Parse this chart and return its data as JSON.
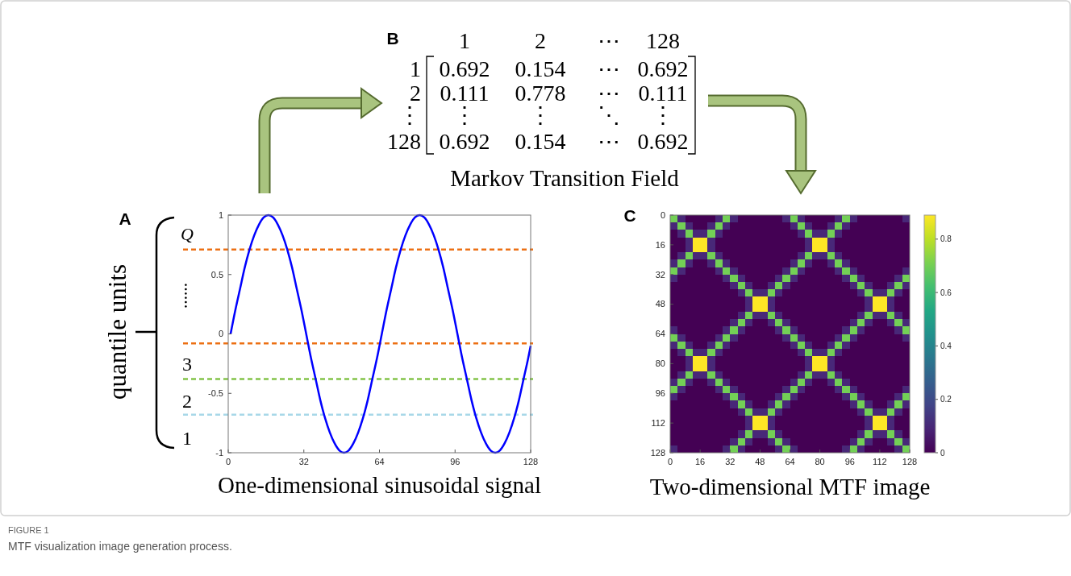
{
  "chart_data": [
    {
      "type": "line",
      "xlabel": "One-dimensional sinusoidal signal",
      "xlim": [
        0,
        128
      ],
      "ylim": [
        -1,
        1
      ],
      "xticks": [
        0,
        32,
        64,
        96,
        128
      ],
      "yticks": [
        -1,
        -0.5,
        0,
        0.5,
        1
      ],
      "x": [
        1,
        3,
        5,
        7,
        9,
        11,
        13,
        15,
        17,
        19,
        21,
        23,
        25,
        27,
        29,
        31,
        33,
        35,
        37,
        39,
        41,
        43,
        45,
        47,
        49,
        51,
        53,
        55,
        57,
        59,
        61,
        63,
        65,
        67,
        69,
        71,
        73,
        75,
        77,
        79,
        81,
        83,
        85,
        87,
        89,
        91,
        93,
        95,
        97,
        99,
        101,
        103,
        105,
        107,
        109,
        111,
        113,
        115,
        117,
        119,
        121,
        123,
        125,
        127,
        128
      ],
      "series": [
        {
          "color": "#0000ff",
          "values": [
            0,
            0.2,
            0.38,
            0.56,
            0.71,
            0.83,
            0.92,
            0.98,
            1,
            0.98,
            0.92,
            0.83,
            0.71,
            0.56,
            0.38,
            0.2,
            0,
            -0.2,
            -0.38,
            -0.56,
            -0.71,
            -0.83,
            -0.92,
            -0.98,
            -1,
            -0.98,
            -0.92,
            -0.83,
            -0.71,
            -0.56,
            -0.38,
            -0.2,
            0,
            0.2,
            0.38,
            0.56,
            0.71,
            0.83,
            0.92,
            0.98,
            1,
            0.98,
            0.92,
            0.83,
            0.71,
            0.56,
            0.38,
            0.2,
            0,
            -0.2,
            -0.38,
            -0.56,
            -0.71,
            -0.83,
            -0.92,
            -0.98,
            -1,
            -0.98,
            -0.92,
            -0.83,
            -0.71,
            -0.56,
            -0.38,
            -0.2,
            -0.1
          ]
        }
      ],
      "ref_lines": [
        {
          "axis": "y",
          "value": 0.71,
          "color": "#ec7014",
          "line_style": "dashed"
        },
        {
          "axis": "y",
          "value": -0.08,
          "color": "#ec7014",
          "line_style": "dashed"
        },
        {
          "axis": "y",
          "value": -0.38,
          "color": "#84c44a",
          "line_style": "dashed"
        },
        {
          "axis": "y",
          "value": -0.68,
          "color": "#a8d8e8",
          "line_style": "dashed"
        }
      ],
      "annotations": [
        "A",
        "quantile units",
        "Q",
        "……",
        "3",
        "2",
        "1"
      ]
    },
    {
      "type": "other",
      "title": "Markov Transition Field",
      "categories": [
        "1",
        "2",
        "⋯",
        "128"
      ],
      "y_categories": [
        "1",
        "2",
        "⋮",
        "128"
      ],
      "cell_labels": [
        [
          "0.692",
          "0.154",
          "⋯",
          "0.692"
        ],
        [
          "0.111",
          "0.778",
          "⋯",
          "0.111"
        ],
        [
          "⋮",
          "⋮",
          "⋱",
          "⋮"
        ],
        [
          "0.692",
          "0.154",
          "⋯",
          "0.692"
        ]
      ],
      "annotations": [
        "B",
        "FIGURE 1",
        "MTF visualization image generation process."
      ]
    },
    {
      "type": "heatmap",
      "xlabel": "Two-dimensional MTF image",
      "xlim": [
        0,
        128
      ],
      "ylim": [
        128,
        0
      ],
      "xticks": [
        0,
        16,
        32,
        48,
        64,
        80,
        96,
        112,
        128
      ],
      "yticks": [
        0,
        16,
        32,
        48,
        64,
        80,
        96,
        112,
        128
      ],
      "clim": [
        0,
        0.89
      ],
      "cticks": [
        0,
        0.2,
        0.4,
        0.6,
        0.8
      ],
      "cells": [
        [
          0.7,
          0.1,
          0,
          0,
          0,
          0,
          0.1,
          0.7,
          0.1,
          0,
          0,
          0,
          0,
          0,
          0,
          0.1,
          0.7,
          0.1,
          0,
          0,
          0,
          0,
          0.1,
          0.7,
          0.1,
          0,
          0,
          0,
          0,
          0,
          0,
          0.1
        ],
        [
          0.1,
          0.7,
          0.1,
          0,
          0,
          0.1,
          0.7,
          0.1,
          0,
          0,
          0,
          0,
          0,
          0,
          0,
          0,
          0.1,
          0.7,
          0.1,
          0,
          0,
          0.1,
          0.7,
          0.1,
          0,
          0,
          0,
          0,
          0,
          0,
          0,
          0
        ],
        [
          0,
          0.1,
          0.7,
          0.1,
          0.1,
          0.7,
          0.1,
          0,
          0,
          0,
          0,
          0,
          0,
          0,
          0,
          0,
          0,
          0.1,
          0.7,
          0.1,
          0.1,
          0.7,
          0.1,
          0,
          0,
          0,
          0,
          0,
          0,
          0,
          0,
          0
        ],
        [
          0,
          0,
          0.1,
          0.89,
          0.89,
          0.1,
          0,
          0,
          0,
          0,
          0,
          0,
          0,
          0,
          0,
          0,
          0,
          0,
          0.1,
          0.89,
          0.89,
          0.1,
          0,
          0,
          0,
          0,
          0,
          0,
          0,
          0,
          0,
          0
        ],
        [
          0,
          0,
          0.1,
          0.89,
          0.89,
          0.1,
          0,
          0,
          0,
          0,
          0,
          0,
          0,
          0,
          0,
          0,
          0,
          0,
          0.1,
          0.89,
          0.89,
          0.1,
          0,
          0,
          0,
          0,
          0,
          0,
          0,
          0,
          0,
          0
        ],
        [
          0,
          0.1,
          0.7,
          0.1,
          0.1,
          0.7,
          0.1,
          0,
          0,
          0,
          0,
          0,
          0,
          0,
          0,
          0,
          0,
          0.1,
          0.7,
          0.1,
          0.1,
          0.7,
          0.1,
          0,
          0,
          0,
          0,
          0,
          0,
          0,
          0,
          0
        ],
        [
          0.1,
          0.7,
          0.1,
          0,
          0,
          0.1,
          0.7,
          0.1,
          0,
          0,
          0,
          0,
          0,
          0,
          0,
          0,
          0.1,
          0.7,
          0.1,
          0,
          0,
          0.1,
          0.7,
          0.1,
          0,
          0,
          0,
          0,
          0,
          0,
          0,
          0
        ],
        [
          0.7,
          0.1,
          0,
          0,
          0,
          0,
          0.1,
          0.7,
          0.1,
          0,
          0,
          0,
          0,
          0,
          0,
          0.1,
          0.7,
          0.1,
          0,
          0,
          0,
          0,
          0.1,
          0.7,
          0.1,
          0,
          0,
          0,
          0,
          0,
          0,
          0.1
        ],
        [
          0.1,
          0,
          0,
          0,
          0,
          0,
          0,
          0.1,
          0.7,
          0.1,
          0,
          0,
          0,
          0,
          0.1,
          0.7,
          0.1,
          0,
          0,
          0,
          0,
          0,
          0,
          0.1,
          0.7,
          0.1,
          0,
          0,
          0,
          0,
          0.1,
          0.7
        ],
        [
          0,
          0,
          0,
          0,
          0,
          0,
          0,
          0,
          0.1,
          0.7,
          0.1,
          0,
          0,
          0.1,
          0.7,
          0.1,
          0,
          0,
          0,
          0,
          0,
          0,
          0,
          0,
          0.1,
          0.7,
          0.1,
          0,
          0,
          0.1,
          0.7,
          0.1
        ],
        [
          0,
          0,
          0,
          0,
          0,
          0,
          0,
          0,
          0,
          0.1,
          0.7,
          0.1,
          0.1,
          0.7,
          0.1,
          0,
          0,
          0,
          0,
          0,
          0,
          0,
          0,
          0,
          0,
          0.1,
          0.7,
          0.1,
          0.1,
          0.7,
          0.1,
          0
        ],
        [
          0,
          0,
          0,
          0,
          0,
          0,
          0,
          0,
          0,
          0,
          0.1,
          0.89,
          0.89,
          0.1,
          0,
          0,
          0,
          0,
          0,
          0,
          0,
          0,
          0,
          0,
          0,
          0,
          0.1,
          0.89,
          0.89,
          0.1,
          0,
          0
        ],
        [
          0,
          0,
          0,
          0,
          0,
          0,
          0,
          0,
          0,
          0,
          0.1,
          0.89,
          0.89,
          0.1,
          0,
          0,
          0,
          0,
          0,
          0,
          0,
          0,
          0,
          0,
          0,
          0,
          0.1,
          0.89,
          0.89,
          0.1,
          0,
          0
        ],
        [
          0,
          0,
          0,
          0,
          0,
          0,
          0,
          0,
          0,
          0.1,
          0.7,
          0.1,
          0.1,
          0.7,
          0.1,
          0,
          0,
          0,
          0,
          0,
          0,
          0,
          0,
          0,
          0,
          0.1,
          0.7,
          0.1,
          0.1,
          0.7,
          0.1,
          0
        ],
        [
          0,
          0,
          0,
          0,
          0,
          0,
          0,
          0,
          0.1,
          0.7,
          0.1,
          0,
          0,
          0.1,
          0.7,
          0.1,
          0,
          0,
          0,
          0,
          0,
          0,
          0,
          0,
          0.1,
          0.7,
          0.1,
          0,
          0,
          0.1,
          0.7,
          0.1
        ],
        [
          0.1,
          0,
          0,
          0,
          0,
          0,
          0,
          0.1,
          0.7,
          0.1,
          0,
          0,
          0,
          0,
          0.1,
          0.7,
          0.1,
          0,
          0,
          0,
          0,
          0,
          0,
          0.1,
          0.7,
          0.1,
          0,
          0,
          0,
          0,
          0.1,
          0.7
        ],
        [
          0.7,
          0.1,
          0,
          0,
          0,
          0,
          0.1,
          0.7,
          0.1,
          0,
          0,
          0,
          0,
          0,
          0,
          0.1,
          0.7,
          0.1,
          0,
          0,
          0,
          0,
          0.1,
          0.7,
          0.1,
          0,
          0,
          0,
          0,
          0,
          0,
          0.1
        ],
        [
          0.1,
          0.7,
          0.1,
          0,
          0,
          0.1,
          0.7,
          0.1,
          0,
          0,
          0,
          0,
          0,
          0,
          0,
          0,
          0.1,
          0.7,
          0.1,
          0,
          0,
          0.1,
          0.7,
          0.1,
          0,
          0,
          0,
          0,
          0,
          0,
          0,
          0
        ],
        [
          0,
          0.1,
          0.7,
          0.1,
          0.1,
          0.7,
          0.1,
          0,
          0,
          0,
          0,
          0,
          0,
          0,
          0,
          0,
          0,
          0.1,
          0.7,
          0.1,
          0.1,
          0.7,
          0.1,
          0,
          0,
          0,
          0,
          0,
          0,
          0,
          0,
          0
        ],
        [
          0,
          0,
          0.1,
          0.89,
          0.89,
          0.1,
          0,
          0,
          0,
          0,
          0,
          0,
          0,
          0,
          0,
          0,
          0,
          0,
          0.1,
          0.89,
          0.89,
          0.1,
          0,
          0,
          0,
          0,
          0,
          0,
          0,
          0,
          0,
          0
        ],
        [
          0,
          0,
          0.1,
          0.89,
          0.89,
          0.1,
          0,
          0,
          0,
          0,
          0,
          0,
          0,
          0,
          0,
          0,
          0,
          0,
          0.1,
          0.89,
          0.89,
          0.1,
          0,
          0,
          0,
          0,
          0,
          0,
          0,
          0,
          0,
          0
        ],
        [
          0,
          0.1,
          0.7,
          0.1,
          0.1,
          0.7,
          0.1,
          0,
          0,
          0,
          0,
          0,
          0,
          0,
          0,
          0,
          0,
          0.1,
          0.7,
          0.1,
          0.1,
          0.7,
          0.1,
          0,
          0,
          0,
          0,
          0,
          0,
          0,
          0,
          0
        ],
        [
          0.1,
          0.7,
          0.1,
          0,
          0,
          0.1,
          0.7,
          0.1,
          0,
          0,
          0,
          0,
          0,
          0,
          0,
          0,
          0.1,
          0.7,
          0.1,
          0,
          0,
          0.1,
          0.7,
          0.1,
          0,
          0,
          0,
          0,
          0,
          0,
          0,
          0
        ],
        [
          0.7,
          0.1,
          0,
          0,
          0,
          0,
          0.1,
          0.7,
          0.1,
          0,
          0,
          0,
          0,
          0,
          0,
          0.1,
          0.7,
          0.1,
          0,
          0,
          0,
          0,
          0.1,
          0.7,
          0.1,
          0,
          0,
          0,
          0,
          0,
          0,
          0.1
        ],
        [
          0.1,
          0,
          0,
          0,
          0,
          0,
          0,
          0.1,
          0.7,
          0.1,
          0,
          0,
          0,
          0,
          0.1,
          0.7,
          0.1,
          0,
          0,
          0,
          0,
          0,
          0,
          0.1,
          0.7,
          0.1,
          0,
          0,
          0,
          0,
          0.1,
          0.7
        ],
        [
          0,
          0,
          0,
          0,
          0,
          0,
          0,
          0,
          0.1,
          0.7,
          0.1,
          0,
          0,
          0.1,
          0.7,
          0.1,
          0,
          0,
          0,
          0,
          0,
          0,
          0,
          0,
          0.1,
          0.7,
          0.1,
          0,
          0,
          0.1,
          0.7,
          0.1
        ],
        [
          0,
          0,
          0,
          0,
          0,
          0,
          0,
          0,
          0,
          0.1,
          0.7,
          0.1,
          0.1,
          0.7,
          0.1,
          0,
          0,
          0,
          0,
          0,
          0,
          0,
          0,
          0,
          0,
          0.1,
          0.7,
          0.1,
          0.1,
          0.7,
          0.1,
          0
        ],
        [
          0,
          0,
          0,
          0,
          0,
          0,
          0,
          0,
          0,
          0,
          0.1,
          0.89,
          0.89,
          0.1,
          0,
          0,
          0,
          0,
          0,
          0,
          0,
          0,
          0,
          0,
          0,
          0,
          0.1,
          0.89,
          0.89,
          0.1,
          0,
          0
        ],
        [
          0,
          0,
          0,
          0,
          0,
          0,
          0,
          0,
          0,
          0,
          0.1,
          0.89,
          0.89,
          0.1,
          0,
          0,
          0,
          0,
          0,
          0,
          0,
          0,
          0,
          0,
          0,
          0,
          0.1,
          0.89,
          0.89,
          0.1,
          0,
          0
        ],
        [
          0,
          0,
          0,
          0,
          0,
          0,
          0,
          0,
          0,
          0.1,
          0.7,
          0.1,
          0.1,
          0.7,
          0.1,
          0,
          0,
          0,
          0,
          0,
          0,
          0,
          0,
          0,
          0,
          0.1,
          0.7,
          0.1,
          0.1,
          0.7,
          0.1,
          0
        ],
        [
          0,
          0,
          0,
          0,
          0,
          0,
          0,
          0,
          0.1,
          0.7,
          0.1,
          0,
          0,
          0.1,
          0.7,
          0.1,
          0,
          0,
          0,
          0,
          0,
          0,
          0,
          0,
          0.1,
          0.7,
          0.1,
          0,
          0,
          0.1,
          0.7,
          0.1
        ],
        [
          0.1,
          0,
          0,
          0,
          0,
          0,
          0,
          0.1,
          0.7,
          0.1,
          0,
          0,
          0,
          0,
          0.1,
          0.7,
          0.1,
          0,
          0,
          0,
          0,
          0,
          0,
          0.1,
          0.7,
          0.1,
          0,
          0,
          0,
          0,
          0.1,
          0.7
        ]
      ],
      "annotations": [
        "C"
      ]
    }
  ]
}
